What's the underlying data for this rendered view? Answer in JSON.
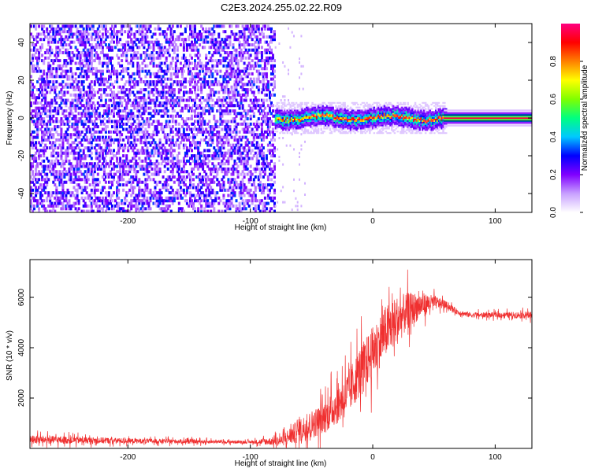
{
  "title": "C2E3.2024.255.02.22.R09",
  "chart_data": [
    {
      "type": "heatmap",
      "xlabel": "Height of straight line (km)",
      "ylabel": "Frequency (Hz)",
      "xlim": [
        -280,
        130
      ],
      "ylim": [
        -50,
        50
      ],
      "xticks": [
        -200,
        -100,
        0,
        100
      ],
      "yticks": [
        -40,
        -20,
        0,
        20,
        40
      ],
      "colorbar": {
        "label": "Normalized spectral amplitude",
        "range": [
          0.0,
          1.0
        ],
        "ticks": [
          0.0,
          0.2,
          0.4,
          0.6,
          0.8
        ],
        "colors": [
          "#ffffff",
          "#c8a0ff",
          "#8000ff",
          "#0000ff",
          "#00c8ff",
          "#00ff80",
          "#80ff00",
          "#ffff00",
          "#ff8000",
          "#ff0000",
          "#ff0080"
        ]
      },
      "regions": [
        {
          "x": [
            -280,
            -80
          ],
          "description_level": 0.15,
          "band_hz": [
            -50,
            50
          ]
        },
        {
          "x": [
            -80,
            55
          ],
          "level": 0.3,
          "band_hz": [
            -5,
            5
          ]
        },
        {
          "x": [
            -55,
            55
          ],
          "level": 0.7,
          "band_hz": [
            -1,
            1
          ]
        },
        {
          "x": [
            55,
            130
          ],
          "level": 0.9,
          "band_hz": [
            -1,
            1
          ]
        }
      ]
    },
    {
      "type": "line",
      "xlabel": "Height of straight line (km)",
      "ylabel": "SNR (10 * v/v)",
      "xlim": [
        -280,
        130
      ],
      "ylim": [
        0,
        7500
      ],
      "xticks": [
        -200,
        -100,
        0,
        100
      ],
      "yticks": [
        2000,
        4000,
        6000
      ],
      "color": "#f03030",
      "x": [
        -280,
        -200,
        -100,
        -75,
        -60,
        -40,
        -20,
        -10,
        0,
        10,
        20,
        30,
        40,
        50,
        60,
        70,
        80,
        100,
        130
      ],
      "y": [
        350,
        300,
        250,
        300,
        700,
        1200,
        2200,
        3100,
        3800,
        4600,
        5100,
        5500,
        5700,
        5800,
        5700,
        5400,
        5300,
        5300,
        5300
      ],
      "noise": [
        250,
        150,
        80,
        300,
        700,
        900,
        1300,
        1400,
        1500,
        1500,
        1400,
        1000,
        700,
        400,
        200,
        150,
        150,
        150,
        200
      ]
    }
  ]
}
